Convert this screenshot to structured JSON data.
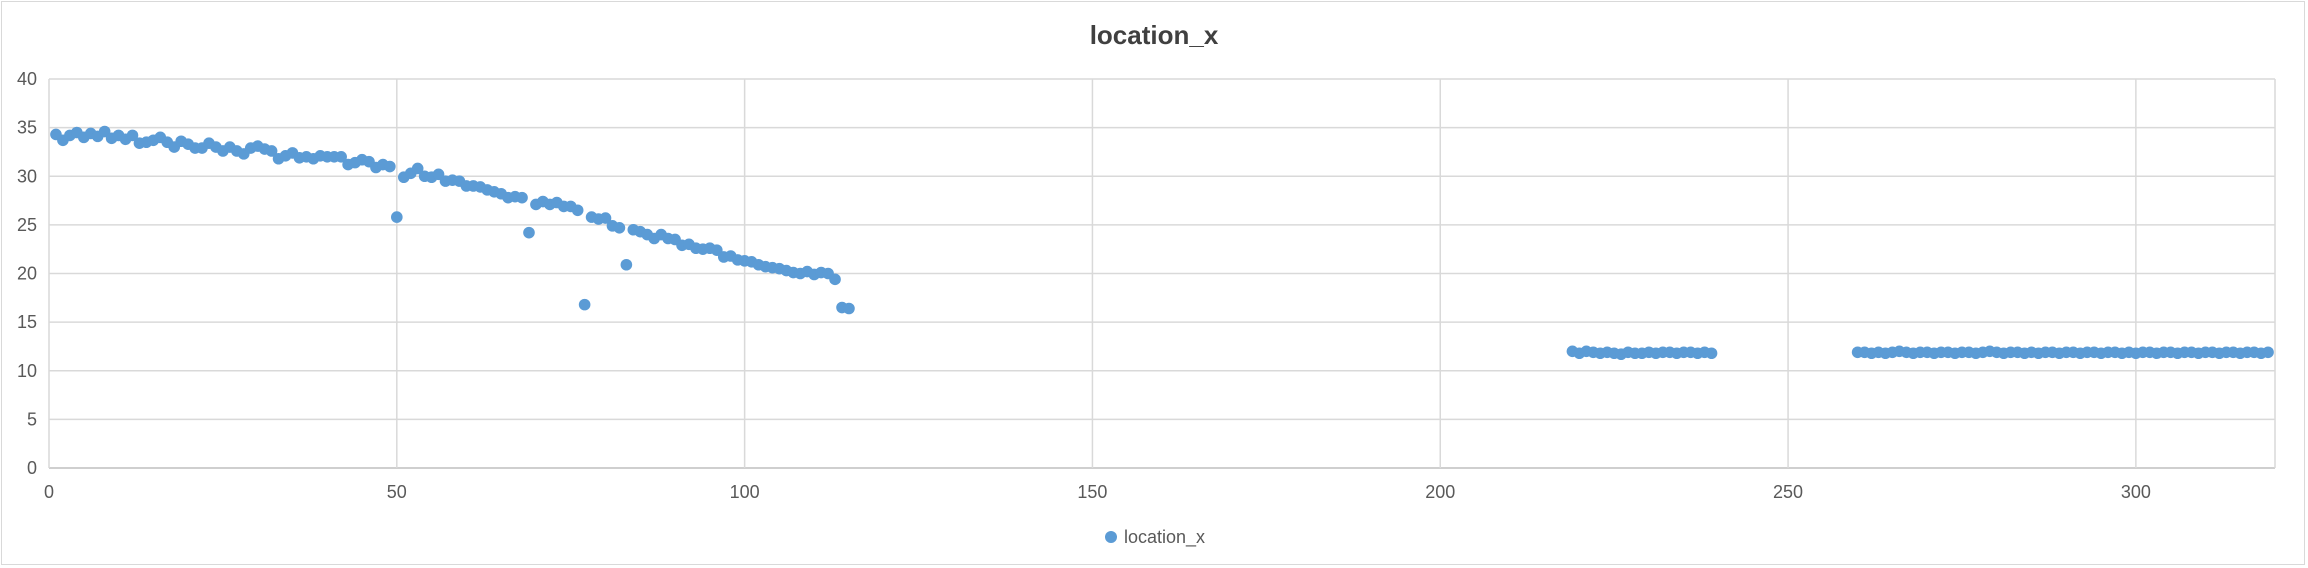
{
  "chart_data": {
    "type": "scatter",
    "title": "location_x",
    "xlim": [
      0,
      320
    ],
    "ylim": [
      0,
      40
    ],
    "x_ticks": [
      0,
      50,
      100,
      150,
      200,
      250,
      300
    ],
    "y_ticks": [
      0,
      5,
      10,
      15,
      20,
      25,
      30,
      35,
      40
    ],
    "grid": true,
    "legend_position": "bottom",
    "marker_color": "#5b9bd5",
    "series": [
      {
        "name": "location_x",
        "points": [
          [
            1,
            34.3
          ],
          [
            2,
            33.7
          ],
          [
            3,
            34.2
          ],
          [
            4,
            34.5
          ],
          [
            5,
            34.0
          ],
          [
            6,
            34.4
          ],
          [
            7,
            34.1
          ],
          [
            8,
            34.6
          ],
          [
            9,
            33.9
          ],
          [
            10,
            34.2
          ],
          [
            11,
            33.8
          ],
          [
            12,
            34.2
          ],
          [
            13,
            33.4
          ],
          [
            14,
            33.5
          ],
          [
            15,
            33.7
          ],
          [
            16,
            34.0
          ],
          [
            17,
            33.5
          ],
          [
            18,
            33.0
          ],
          [
            19,
            33.6
          ],
          [
            20,
            33.3
          ],
          [
            21,
            32.9
          ],
          [
            22,
            32.9
          ],
          [
            23,
            33.4
          ],
          [
            24,
            33.0
          ],
          [
            25,
            32.6
          ],
          [
            26,
            33.0
          ],
          [
            27,
            32.6
          ],
          [
            28,
            32.3
          ],
          [
            29,
            32.9
          ],
          [
            30,
            33.1
          ],
          [
            31,
            32.8
          ],
          [
            32,
            32.6
          ],
          [
            33,
            31.8
          ],
          [
            34,
            32.1
          ],
          [
            35,
            32.4
          ],
          [
            36,
            31.9
          ],
          [
            37,
            32.0
          ],
          [
            38,
            31.8
          ],
          [
            39,
            32.1
          ],
          [
            40,
            32.0
          ],
          [
            41,
            32.0
          ],
          [
            42,
            32.0
          ],
          [
            43,
            31.2
          ],
          [
            44,
            31.4
          ],
          [
            45,
            31.7
          ],
          [
            46,
            31.5
          ],
          [
            47,
            30.9
          ],
          [
            48,
            31.2
          ],
          [
            49,
            31.0
          ],
          [
            50,
            25.8
          ],
          [
            51,
            29.9
          ],
          [
            52,
            30.3
          ],
          [
            53,
            30.8
          ],
          [
            54,
            30.0
          ],
          [
            55,
            29.9
          ],
          [
            56,
            30.2
          ],
          [
            57,
            29.5
          ],
          [
            58,
            29.6
          ],
          [
            59,
            29.5
          ],
          [
            60,
            29.0
          ],
          [
            61,
            29.0
          ],
          [
            62,
            28.9
          ],
          [
            63,
            28.6
          ],
          [
            64,
            28.4
          ],
          [
            65,
            28.2
          ],
          [
            66,
            27.8
          ],
          [
            67,
            27.9
          ],
          [
            68,
            27.8
          ],
          [
            69,
            24.2
          ],
          [
            70,
            27.1
          ],
          [
            71,
            27.4
          ],
          [
            72,
            27.1
          ],
          [
            73,
            27.3
          ],
          [
            74,
            26.9
          ],
          [
            75,
            26.9
          ],
          [
            76,
            26.5
          ],
          [
            77,
            16.8
          ],
          [
            78,
            25.8
          ],
          [
            79,
            25.6
          ],
          [
            80,
            25.7
          ],
          [
            81,
            24.9
          ],
          [
            82,
            24.7
          ],
          [
            83,
            20.9
          ],
          [
            84,
            24.5
          ],
          [
            85,
            24.3
          ],
          [
            86,
            24.0
          ],
          [
            87,
            23.6
          ],
          [
            88,
            24.0
          ],
          [
            89,
            23.6
          ],
          [
            90,
            23.5
          ],
          [
            91,
            22.9
          ],
          [
            92,
            23.0
          ],
          [
            93,
            22.6
          ],
          [
            94,
            22.5
          ],
          [
            95,
            22.6
          ],
          [
            96,
            22.4
          ],
          [
            97,
            21.7
          ],
          [
            98,
            21.8
          ],
          [
            99,
            21.4
          ],
          [
            100,
            21.3
          ],
          [
            101,
            21.2
          ],
          [
            102,
            20.9
          ],
          [
            103,
            20.7
          ],
          [
            104,
            20.6
          ],
          [
            105,
            20.5
          ],
          [
            106,
            20.3
          ],
          [
            107,
            20.1
          ],
          [
            108,
            20.0
          ],
          [
            109,
            20.2
          ],
          [
            110,
            19.9
          ],
          [
            111,
            20.1
          ],
          [
            112,
            20.0
          ],
          [
            113,
            19.4
          ],
          [
            114,
            16.5
          ],
          [
            115,
            16.4
          ],
          [
            219,
            12.0
          ],
          [
            220,
            11.8
          ],
          [
            221,
            12.0
          ],
          [
            222,
            11.9
          ],
          [
            223,
            11.8
          ],
          [
            224,
            11.9
          ],
          [
            225,
            11.8
          ],
          [
            226,
            11.7
          ],
          [
            227,
            11.9
          ],
          [
            228,
            11.8
          ],
          [
            229,
            11.8
          ],
          [
            230,
            11.9
          ],
          [
            231,
            11.8
          ],
          [
            232,
            11.9
          ],
          [
            233,
            11.9
          ],
          [
            234,
            11.8
          ],
          [
            235,
            11.9
          ],
          [
            236,
            11.9
          ],
          [
            237,
            11.8
          ],
          [
            238,
            11.9
          ],
          [
            239,
            11.8
          ],
          [
            260,
            11.9
          ],
          [
            261,
            11.9
          ],
          [
            262,
            11.8
          ],
          [
            263,
            11.9
          ],
          [
            264,
            11.8
          ],
          [
            265,
            11.9
          ],
          [
            266,
            12.0
          ],
          [
            267,
            11.9
          ],
          [
            268,
            11.8
          ],
          [
            269,
            11.9
          ],
          [
            270,
            11.9
          ],
          [
            271,
            11.8
          ],
          [
            272,
            11.9
          ],
          [
            273,
            11.9
          ],
          [
            274,
            11.8
          ],
          [
            275,
            11.9
          ],
          [
            276,
            11.9
          ],
          [
            277,
            11.8
          ],
          [
            278,
            11.9
          ],
          [
            279,
            12.0
          ],
          [
            280,
            11.9
          ],
          [
            281,
            11.8
          ],
          [
            282,
            11.9
          ],
          [
            283,
            11.9
          ],
          [
            284,
            11.8
          ],
          [
            285,
            11.9
          ],
          [
            286,
            11.8
          ],
          [
            287,
            11.9
          ],
          [
            288,
            11.9
          ],
          [
            289,
            11.8
          ],
          [
            290,
            11.9
          ],
          [
            291,
            11.9
          ],
          [
            292,
            11.8
          ],
          [
            293,
            11.9
          ],
          [
            294,
            11.9
          ],
          [
            295,
            11.8
          ],
          [
            296,
            11.9
          ],
          [
            297,
            11.9
          ],
          [
            298,
            11.8
          ],
          [
            299,
            11.9
          ],
          [
            300,
            11.8
          ],
          [
            301,
            11.9
          ],
          [
            302,
            11.9
          ],
          [
            303,
            11.8
          ],
          [
            304,
            11.9
          ],
          [
            305,
            11.9
          ],
          [
            306,
            11.8
          ],
          [
            307,
            11.9
          ],
          [
            308,
            11.9
          ],
          [
            309,
            11.8
          ],
          [
            310,
            11.9
          ],
          [
            311,
            11.9
          ],
          [
            312,
            11.8
          ],
          [
            313,
            11.9
          ],
          [
            314,
            11.9
          ],
          [
            315,
            11.8
          ],
          [
            316,
            11.9
          ],
          [
            317,
            11.9
          ],
          [
            318,
            11.8
          ],
          [
            319,
            11.9
          ]
        ]
      }
    ]
  }
}
